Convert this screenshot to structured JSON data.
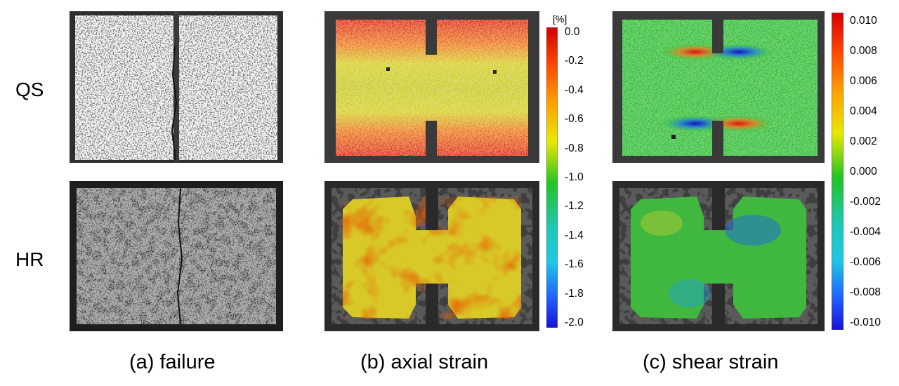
{
  "rows": {
    "top": "QS",
    "bottom": "HR"
  },
  "captions": {
    "a": "(a) failure",
    "b": "(b) axial strain",
    "c": "(c) shear strain"
  },
  "axial_colorbar": {
    "unit": "[%]",
    "ticks": [
      "0.0",
      "-0.2",
      "-0.4",
      "-0.6",
      "-0.8",
      "-1.0",
      "-1.2",
      "-1.4",
      "-1.6",
      "-1.8",
      "-2.0"
    ]
  },
  "shear_colorbar": {
    "ticks": [
      "0.010",
      "0.008",
      "0.006",
      "0.004",
      "0.002",
      "0.000",
      "-0.002",
      "-0.004",
      "-0.006",
      "-0.008",
      "-0.010"
    ]
  },
  "colors": {
    "jet_top": "#d40000",
    "jet_upper": "#ffa000",
    "jet_mid_upper": "#e8e800",
    "jet_mid": "#22c422",
    "jet_lower": "#1ec8e6",
    "jet_bottom": "#1a10d8"
  }
}
